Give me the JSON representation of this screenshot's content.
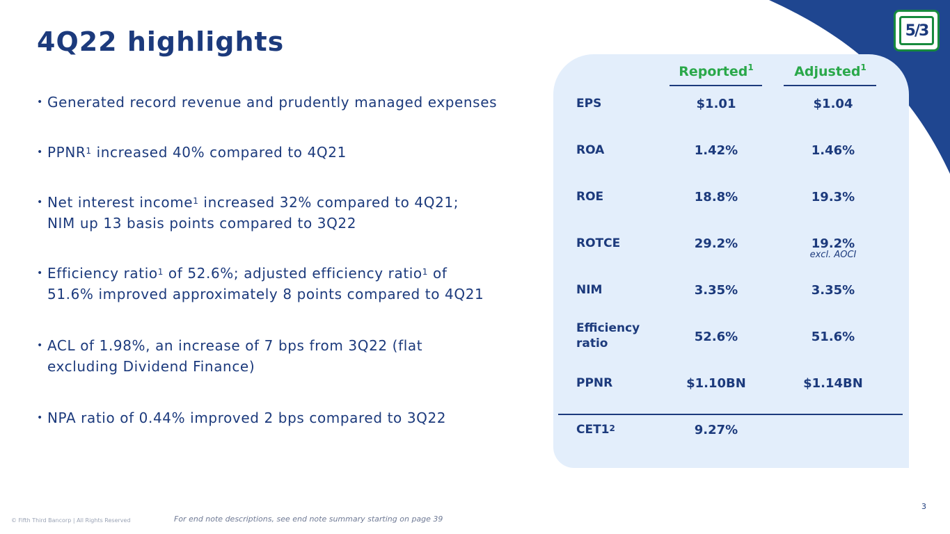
{
  "title": "4Q22 highlights",
  "bullets": [
    {
      "pre": "Generated record revenue and prudently managed expenses",
      "sup": "",
      "post": ""
    },
    {
      "pre": "PPNR",
      "sup": "1",
      "post": " increased 40% compared to 4Q21"
    },
    {
      "pre": "Net interest income",
      "sup": "1",
      "post": " increased 32% compared to 4Q21;",
      "line2": "NIM up 13 basis points compared to 3Q22"
    },
    {
      "pre": "Efficiency ratio",
      "sup": "1",
      "mid": " of 52.6%; adjusted efficiency ratio",
      "sup2": "1",
      "post": " of",
      "line2": "51.6% improved approximately 8 points compared to 4Q21"
    },
    {
      "pre": "ACL of 1.98%, an increase of 7 bps from 3Q22 (flat",
      "line2": "excluding Dividend Finance)"
    },
    {
      "pre": "NPA ratio of 0.44% improved 2 bps compared to 3Q22"
    }
  ],
  "table": {
    "reported_header": "Reported",
    "adjusted_header": "Adjusted",
    "header_sup": "1",
    "rows": [
      {
        "label": "EPS",
        "reported": "$1.01",
        "adjusted": "$1.04"
      },
      {
        "label": "ROA",
        "reported": "1.42%",
        "adjusted": "1.46%"
      },
      {
        "label": "ROE",
        "reported": "18.8%",
        "adjusted": "19.3%"
      },
      {
        "label": "ROTCE",
        "reported": "29.2%",
        "adjusted": "19.2%",
        "note": "excl. AOCI"
      },
      {
        "label": "NIM",
        "reported": "3.35%",
        "adjusted": "3.35%"
      },
      {
        "label": "Efficiency",
        "label2": "ratio",
        "reported": "52.6%",
        "adjusted": "51.6%"
      },
      {
        "label": "PPNR",
        "reported": "$1.10BN",
        "adjusted": "$1.14BN"
      },
      {
        "label": "CET1",
        "label_sup": "2",
        "reported": "9.27%",
        "adjusted": ""
      }
    ]
  },
  "logo_text": "5/3",
  "footer": {
    "copyright": "© Fifth Third Bancorp | All Rights Reserved",
    "endnote": "For end note descriptions, see end note summary starting on page 39",
    "page_number": "3"
  },
  "colors": {
    "primary": "#1c3a7c",
    "accent_green": "#2aa84a",
    "panel": "#e3eefb",
    "swoosh": "#1f4690"
  }
}
